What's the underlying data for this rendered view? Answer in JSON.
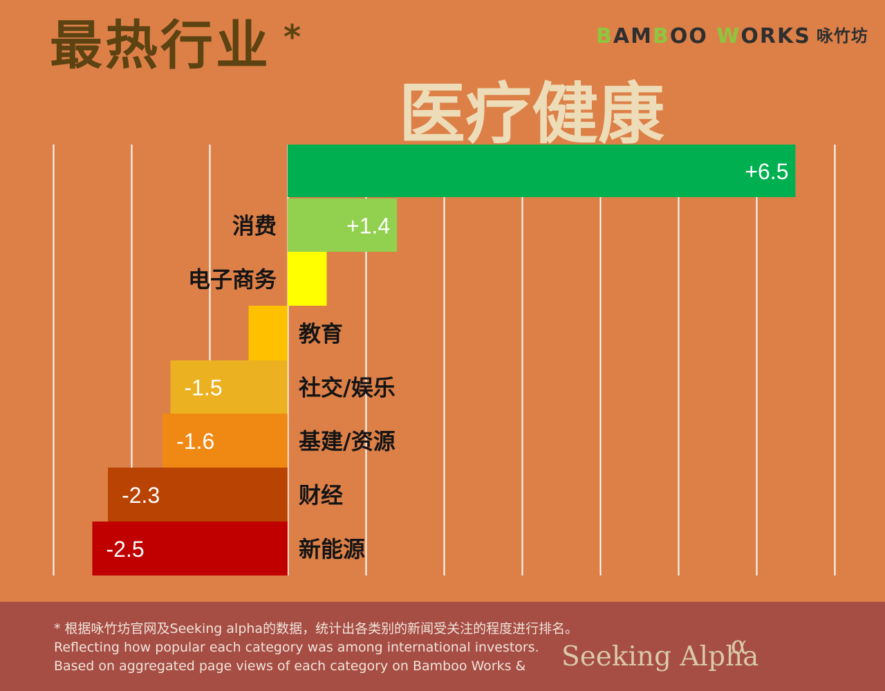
{
  "header": {
    "title": "最热行业",
    "asterisk": "*",
    "brand": {
      "b1": "B",
      "am": "AM",
      "b2": "B",
      "oo": "OO ",
      "w": "W",
      "orks": "ORKS",
      "cn": "咏竹坊"
    },
    "brand_green": "#8DC63F"
  },
  "chart_data": {
    "type": "bar",
    "orientation": "horizontal",
    "title": "最热行业 *",
    "grid": true,
    "xlim": [
      -3,
      7
    ],
    "categories": [
      "医疗健康",
      "消费",
      "电子商务",
      "教育",
      "社交/娱乐",
      "基建/资源",
      "财经",
      "新能源"
    ],
    "values": [
      6.5,
      1.4,
      0.5,
      -0.5,
      -1.5,
      -1.6,
      -2.3,
      -2.5
    ],
    "value_labels": [
      "+6.5",
      "+1.4",
      "",
      "",
      "-1.5",
      "-1.6",
      "-2.3",
      "-2.5"
    ],
    "colors": [
      "#00B050",
      "#92D050",
      "#FFFF00",
      "#FFC000",
      "#EBB120",
      "#EF8913",
      "#B84303",
      "#C00000"
    ]
  },
  "footer": {
    "note_cn": "* 根据咏竹坊官网及Seeking alpha的数据，统计出各类别的新闻受关注的程度进行排名。",
    "note_en1": "Reflecting how popular each category was among international investors.",
    "note_en2": "Based on aggregated page views of each category on Bamboo Works &",
    "logo_text": "Seeking Alpha",
    "logo_symbol": "α"
  }
}
